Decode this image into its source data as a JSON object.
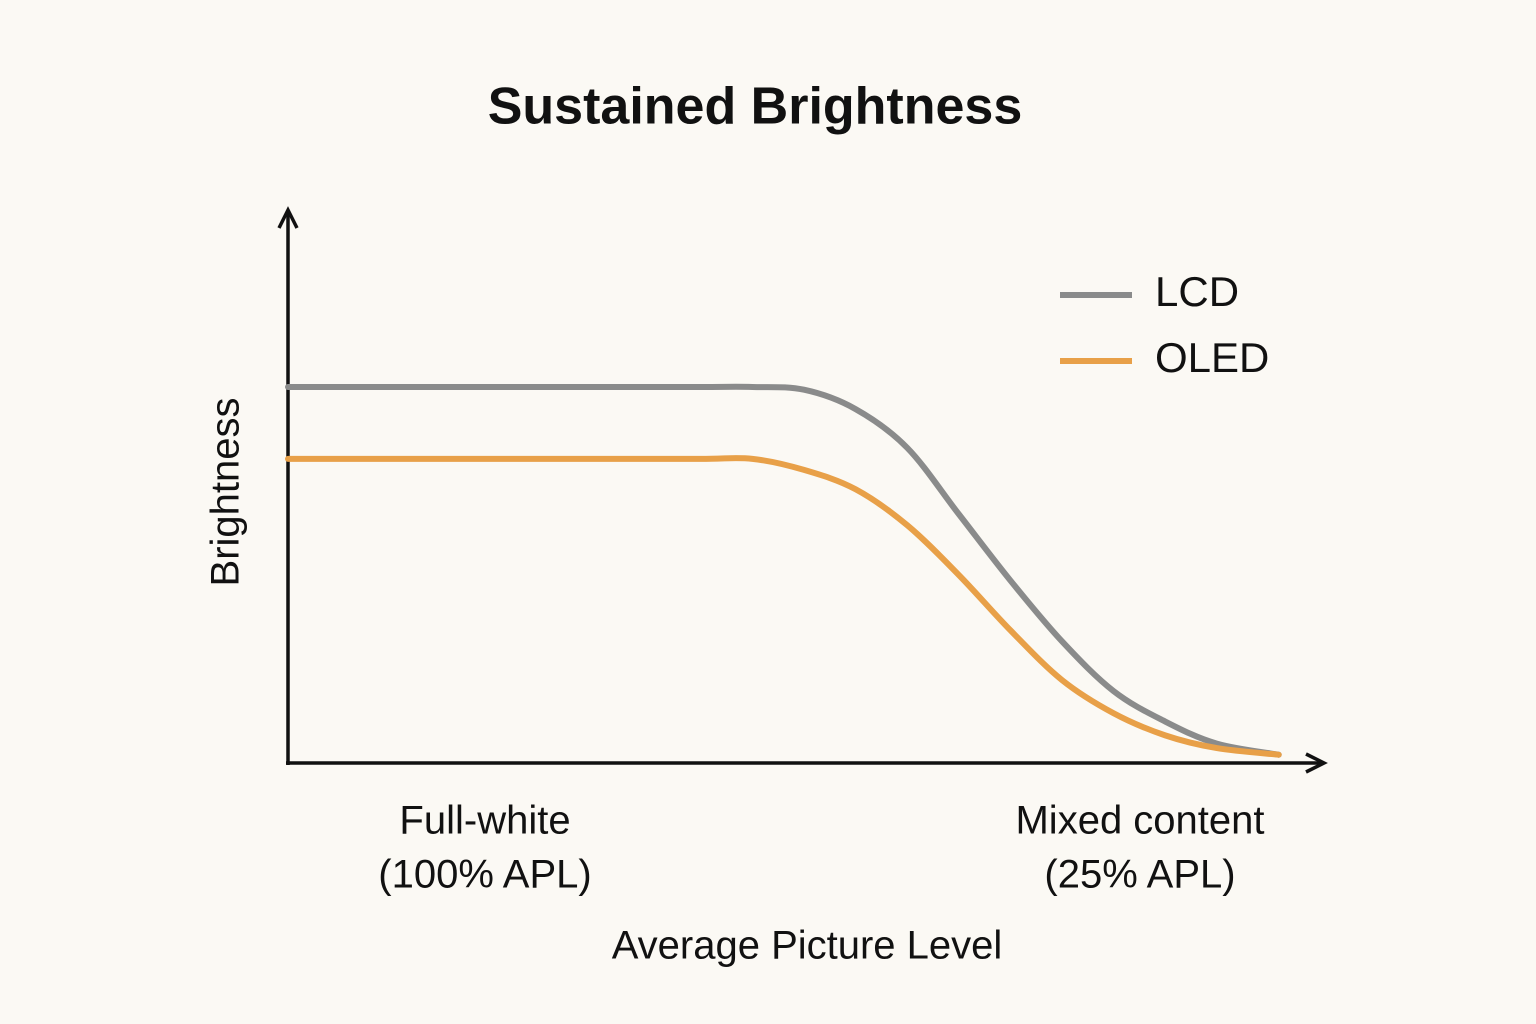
{
  "chart_data": {
    "type": "line",
    "title": "Sustained Brightness",
    "x_label": "Average Picture Level",
    "y_label": "Brightness",
    "x_tick_labels": [
      [
        "Full-white",
        "(100% APL)"
      ],
      [
        "Mixed content",
        "(25% APL)"
      ]
    ],
    "x": [
      0,
      10,
      20,
      30,
      40,
      45,
      50,
      55,
      60,
      65,
      70,
      75,
      80,
      85,
      90,
      96
    ],
    "series": [
      {
        "name": "LCD",
        "color": "#8a8b8b",
        "values": [
          68,
          68,
          68,
          68,
          68,
          68,
          67.5,
          64,
          57,
          45,
          33,
          22,
          13,
          7.5,
          3.5,
          1.5
        ]
      },
      {
        "name": "OLED",
        "color": "#e8a048",
        "values": [
          55,
          55,
          55,
          55,
          55,
          55,
          53,
          49.5,
          43,
          34,
          24,
          15,
          9,
          5,
          2.7,
          1.5
        ]
      }
    ],
    "xlim": [
      0,
      100
    ],
    "ylim": [
      0,
      100
    ],
    "legend": "upper right"
  }
}
